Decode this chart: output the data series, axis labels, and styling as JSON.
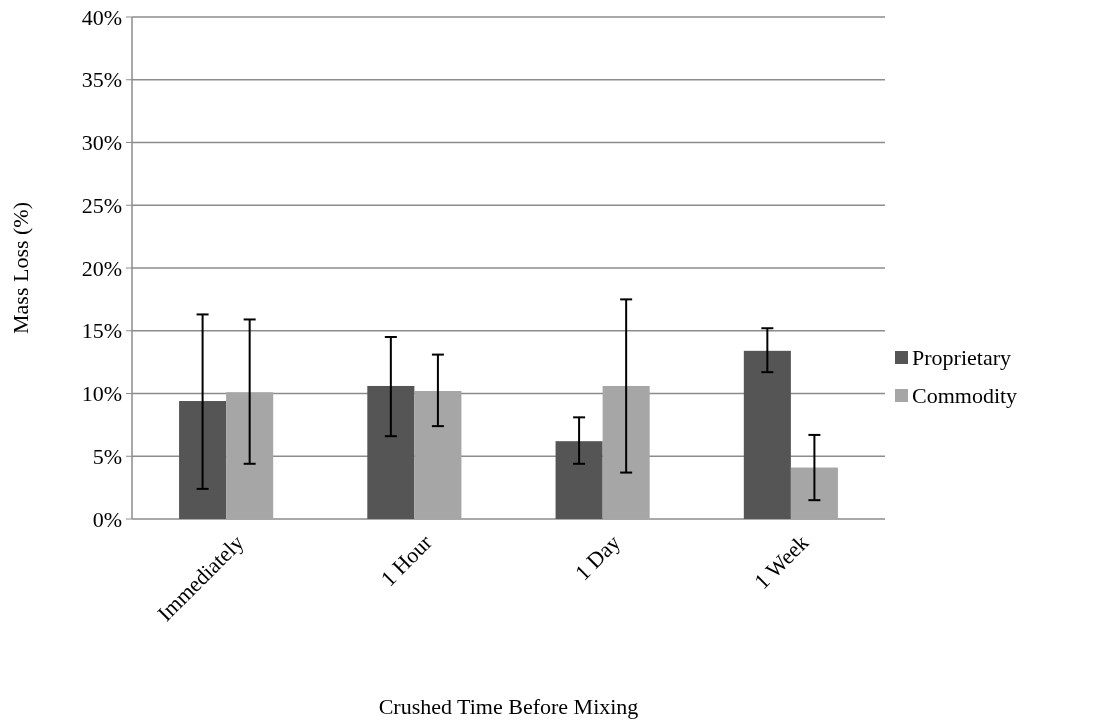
{
  "chart_data": {
    "type": "bar",
    "xlabel": "Crushed Time Before Mixing",
    "ylabel": "Mass Loss (%)",
    "categories": [
      "Immediately",
      "1 Hour",
      "1 Day",
      "1 Week"
    ],
    "series": [
      {
        "name": "Proprietary",
        "color": "#555555",
        "values": [
          9.4,
          10.6,
          6.2,
          13.4
        ],
        "errors": [
          [
            2.4,
            16.3
          ],
          [
            6.6,
            14.5
          ],
          [
            4.4,
            8.1
          ],
          [
            11.7,
            15.2
          ]
        ]
      },
      {
        "name": "Commodity",
        "color": "#a6a6a6",
        "values": [
          10.1,
          10.2,
          10.6,
          4.1
        ],
        "errors": [
          [
            4.4,
            15.9
          ],
          [
            7.4,
            13.1
          ],
          [
            3.7,
            17.5
          ],
          [
            1.5,
            6.7
          ]
        ]
      }
    ],
    "ylim": [
      0,
      40
    ],
    "yticks": [
      {
        "value": 0,
        "label": "0%"
      },
      {
        "value": 5,
        "label": "5%"
      },
      {
        "value": 10,
        "label": "10%"
      },
      {
        "value": 15,
        "label": "15%"
      },
      {
        "value": 20,
        "label": "20%"
      },
      {
        "value": 25,
        "label": "25%"
      },
      {
        "value": 30,
        "label": "30%"
      },
      {
        "value": 35,
        "label": "35%"
      },
      {
        "value": 40,
        "label": "40%"
      }
    ],
    "grid": "y",
    "legend": "right"
  }
}
